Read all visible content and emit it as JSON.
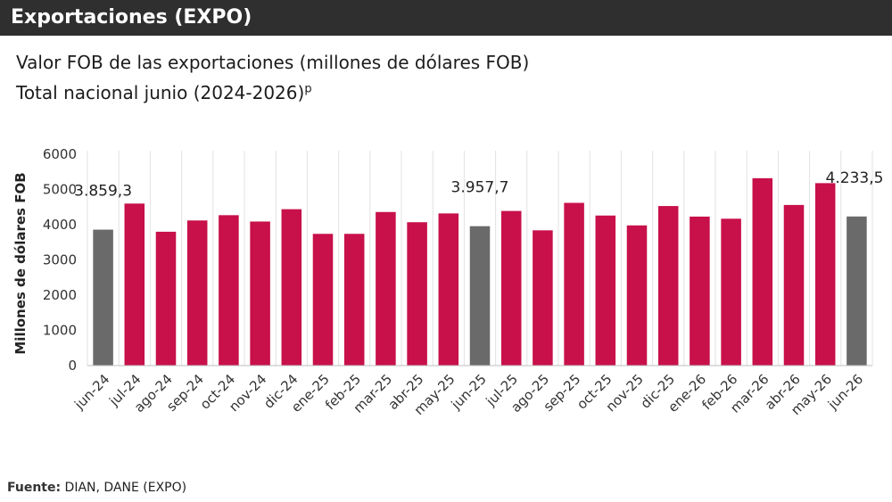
{
  "header": {
    "title": "Exportaciones (EXPO)"
  },
  "subtitle": {
    "line1": "Valor FOB de las exportaciones (millones de dólares FOB)",
    "line2": "Total nacional junio (2024-2026)",
    "superscript": "p"
  },
  "source": {
    "label": "Fuente:",
    "text": " DIAN, DANE (EXPO)"
  },
  "colors": {
    "highlight_bar": "#6a6a6a",
    "regular_bar": "#c8104a",
    "header_bg": "#2f2f2f"
  },
  "chart_data": {
    "type": "bar",
    "ylabel": "Millones de dólares FOB",
    "xlabel": "",
    "ylim": [
      0,
      6000
    ],
    "yticks": [
      "0",
      "1000",
      "2000",
      "3000",
      "4000",
      "5000",
      "6000"
    ],
    "grid": "vertical separators only",
    "categories": [
      "jun-24",
      "jul-24",
      "ago-24",
      "sep-24",
      "oct-24",
      "nov-24",
      "dic-24",
      "ene-25",
      "feb-25",
      "mar-25",
      "abr-25",
      "may-25",
      "jun-25",
      "jul-25",
      "ago-25",
      "sep-25",
      "oct-25",
      "nov-25",
      "dic-25",
      "ene-26",
      "feb-26",
      "mar-26",
      "abr-26",
      "may-26",
      "jun-26"
    ],
    "values": [
      3859.3,
      4600,
      3800,
      4120,
      4270,
      4090,
      4440,
      3740,
      3740,
      4360,
      4070,
      4320,
      3957.7,
      4390,
      3840,
      4620,
      4260,
      3980,
      4530,
      4230,
      4170,
      5320,
      4560,
      5180,
      4233.5
    ],
    "highlighted": [
      0,
      12,
      24
    ],
    "data_labels": [
      {
        "index": 0,
        "text": "3.859,3"
      },
      {
        "index": 12,
        "text": "3.957,7"
      },
      {
        "index": 24,
        "text": "4.233,5"
      }
    ]
  }
}
